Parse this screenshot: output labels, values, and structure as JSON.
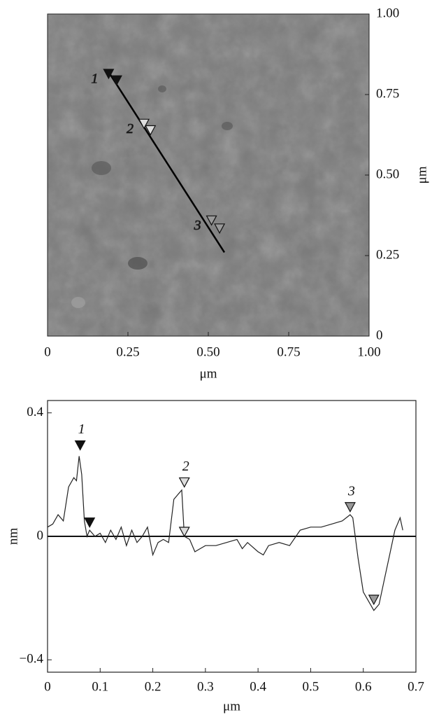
{
  "chart_data": [
    {
      "type": "image",
      "xlabel": "μm",
      "ylabel": "μm",
      "xlim": [
        0,
        1
      ],
      "ylim": [
        0,
        1
      ],
      "xticks": [
        0,
        0.25,
        {
          "value": 0.5,
          "label": "0.50"
        },
        0.75,
        {
          "value": 1,
          "label": "1.00"
        }
      ],
      "yticks": [
        0,
        0.25,
        {
          "value": 0.5,
          "label": "0.50"
        },
        0.75,
        {
          "value": 1,
          "label": "1.00"
        }
      ],
      "scan_line": {
        "x": [
          0.19,
          0.55
        ],
        "y": [
          0.82,
          0.26
        ]
      },
      "markers": [
        {
          "label": "1",
          "x": 0.19,
          "y": 0.8,
          "color": "#111"
        },
        {
          "x": 0.215,
          "y": 0.78,
          "color": "#111"
        },
        {
          "label": "2",
          "x": 0.3,
          "y": 0.645,
          "color": "#ddd"
        },
        {
          "x": 0.32,
          "y": 0.625,
          "color": "#ddd"
        },
        {
          "label": "3",
          "x": 0.51,
          "y": 0.345,
          "color": "#999"
        },
        {
          "x": 0.535,
          "y": 0.32,
          "color": "#999"
        }
      ]
    },
    {
      "type": "line",
      "xlabel": "μm",
      "ylabel": "nm",
      "color": "#222",
      "xlim": [
        0,
        0.7
      ],
      "ylim": [
        -0.44,
        0.44
      ],
      "xticks": [
        0,
        0.1,
        0.2,
        0.3,
        0.4,
        0.5,
        0.6,
        0.7
      ],
      "yticks": [
        {
          "value": -0.4,
          "label": "−0.4"
        },
        0,
        0.4
      ],
      "baseline": 0,
      "x": [
        0,
        0.01,
        0.02,
        0.03,
        0.04,
        0.05,
        0.055,
        0.06,
        0.065,
        0.07,
        0.075,
        0.08,
        0.09,
        0.1,
        0.11,
        0.12,
        0.13,
        0.14,
        0.15,
        0.16,
        0.17,
        0.18,
        0.19,
        0.2,
        0.21,
        0.22,
        0.23,
        0.24,
        0.25,
        0.255,
        0.26,
        0.27,
        0.28,
        0.29,
        0.3,
        0.32,
        0.34,
        0.36,
        0.37,
        0.38,
        0.4,
        0.41,
        0.42,
        0.44,
        0.46,
        0.48,
        0.5,
        0.52,
        0.54,
        0.56,
        0.575,
        0.58,
        0.59,
        0.6,
        0.61,
        0.62,
        0.63,
        0.64,
        0.65,
        0.66,
        0.67,
        0.675
      ],
      "values": [
        0.03,
        0.04,
        0.07,
        0.05,
        0.16,
        0.19,
        0.18,
        0.26,
        0.2,
        0.05,
        0.0,
        0.02,
        0.0,
        0.01,
        -0.02,
        0.02,
        -0.01,
        0.03,
        -0.03,
        0.02,
        -0.02,
        0.0,
        0.03,
        -0.06,
        -0.02,
        -0.01,
        -0.02,
        0.12,
        0.14,
        0.15,
        0.0,
        -0.01,
        -0.05,
        -0.04,
        -0.03,
        -0.03,
        -0.02,
        -0.01,
        -0.04,
        -0.02,
        -0.05,
        -0.06,
        -0.03,
        -0.02,
        -0.03,
        0.02,
        0.03,
        0.03,
        0.04,
        0.05,
        0.07,
        0.06,
        -0.07,
        -0.18,
        -0.21,
        -0.24,
        -0.22,
        -0.14,
        -0.06,
        0.02,
        0.06,
        0.02
      ],
      "markers": [
        {
          "label": "1",
          "x": 0.062,
          "y": 0.28,
          "color": "#111"
        },
        {
          "x": 0.08,
          "y": 0.03,
          "color": "#111"
        },
        {
          "label": "2",
          "x": 0.26,
          "y": 0.16,
          "color": "#ddd"
        },
        {
          "x": 0.26,
          "y": 0.0,
          "color": "#ddd"
        },
        {
          "label": "3",
          "x": 0.575,
          "y": 0.08,
          "color": "#999"
        },
        {
          "x": 0.62,
          "y": -0.22,
          "color": "#999"
        }
      ]
    }
  ]
}
